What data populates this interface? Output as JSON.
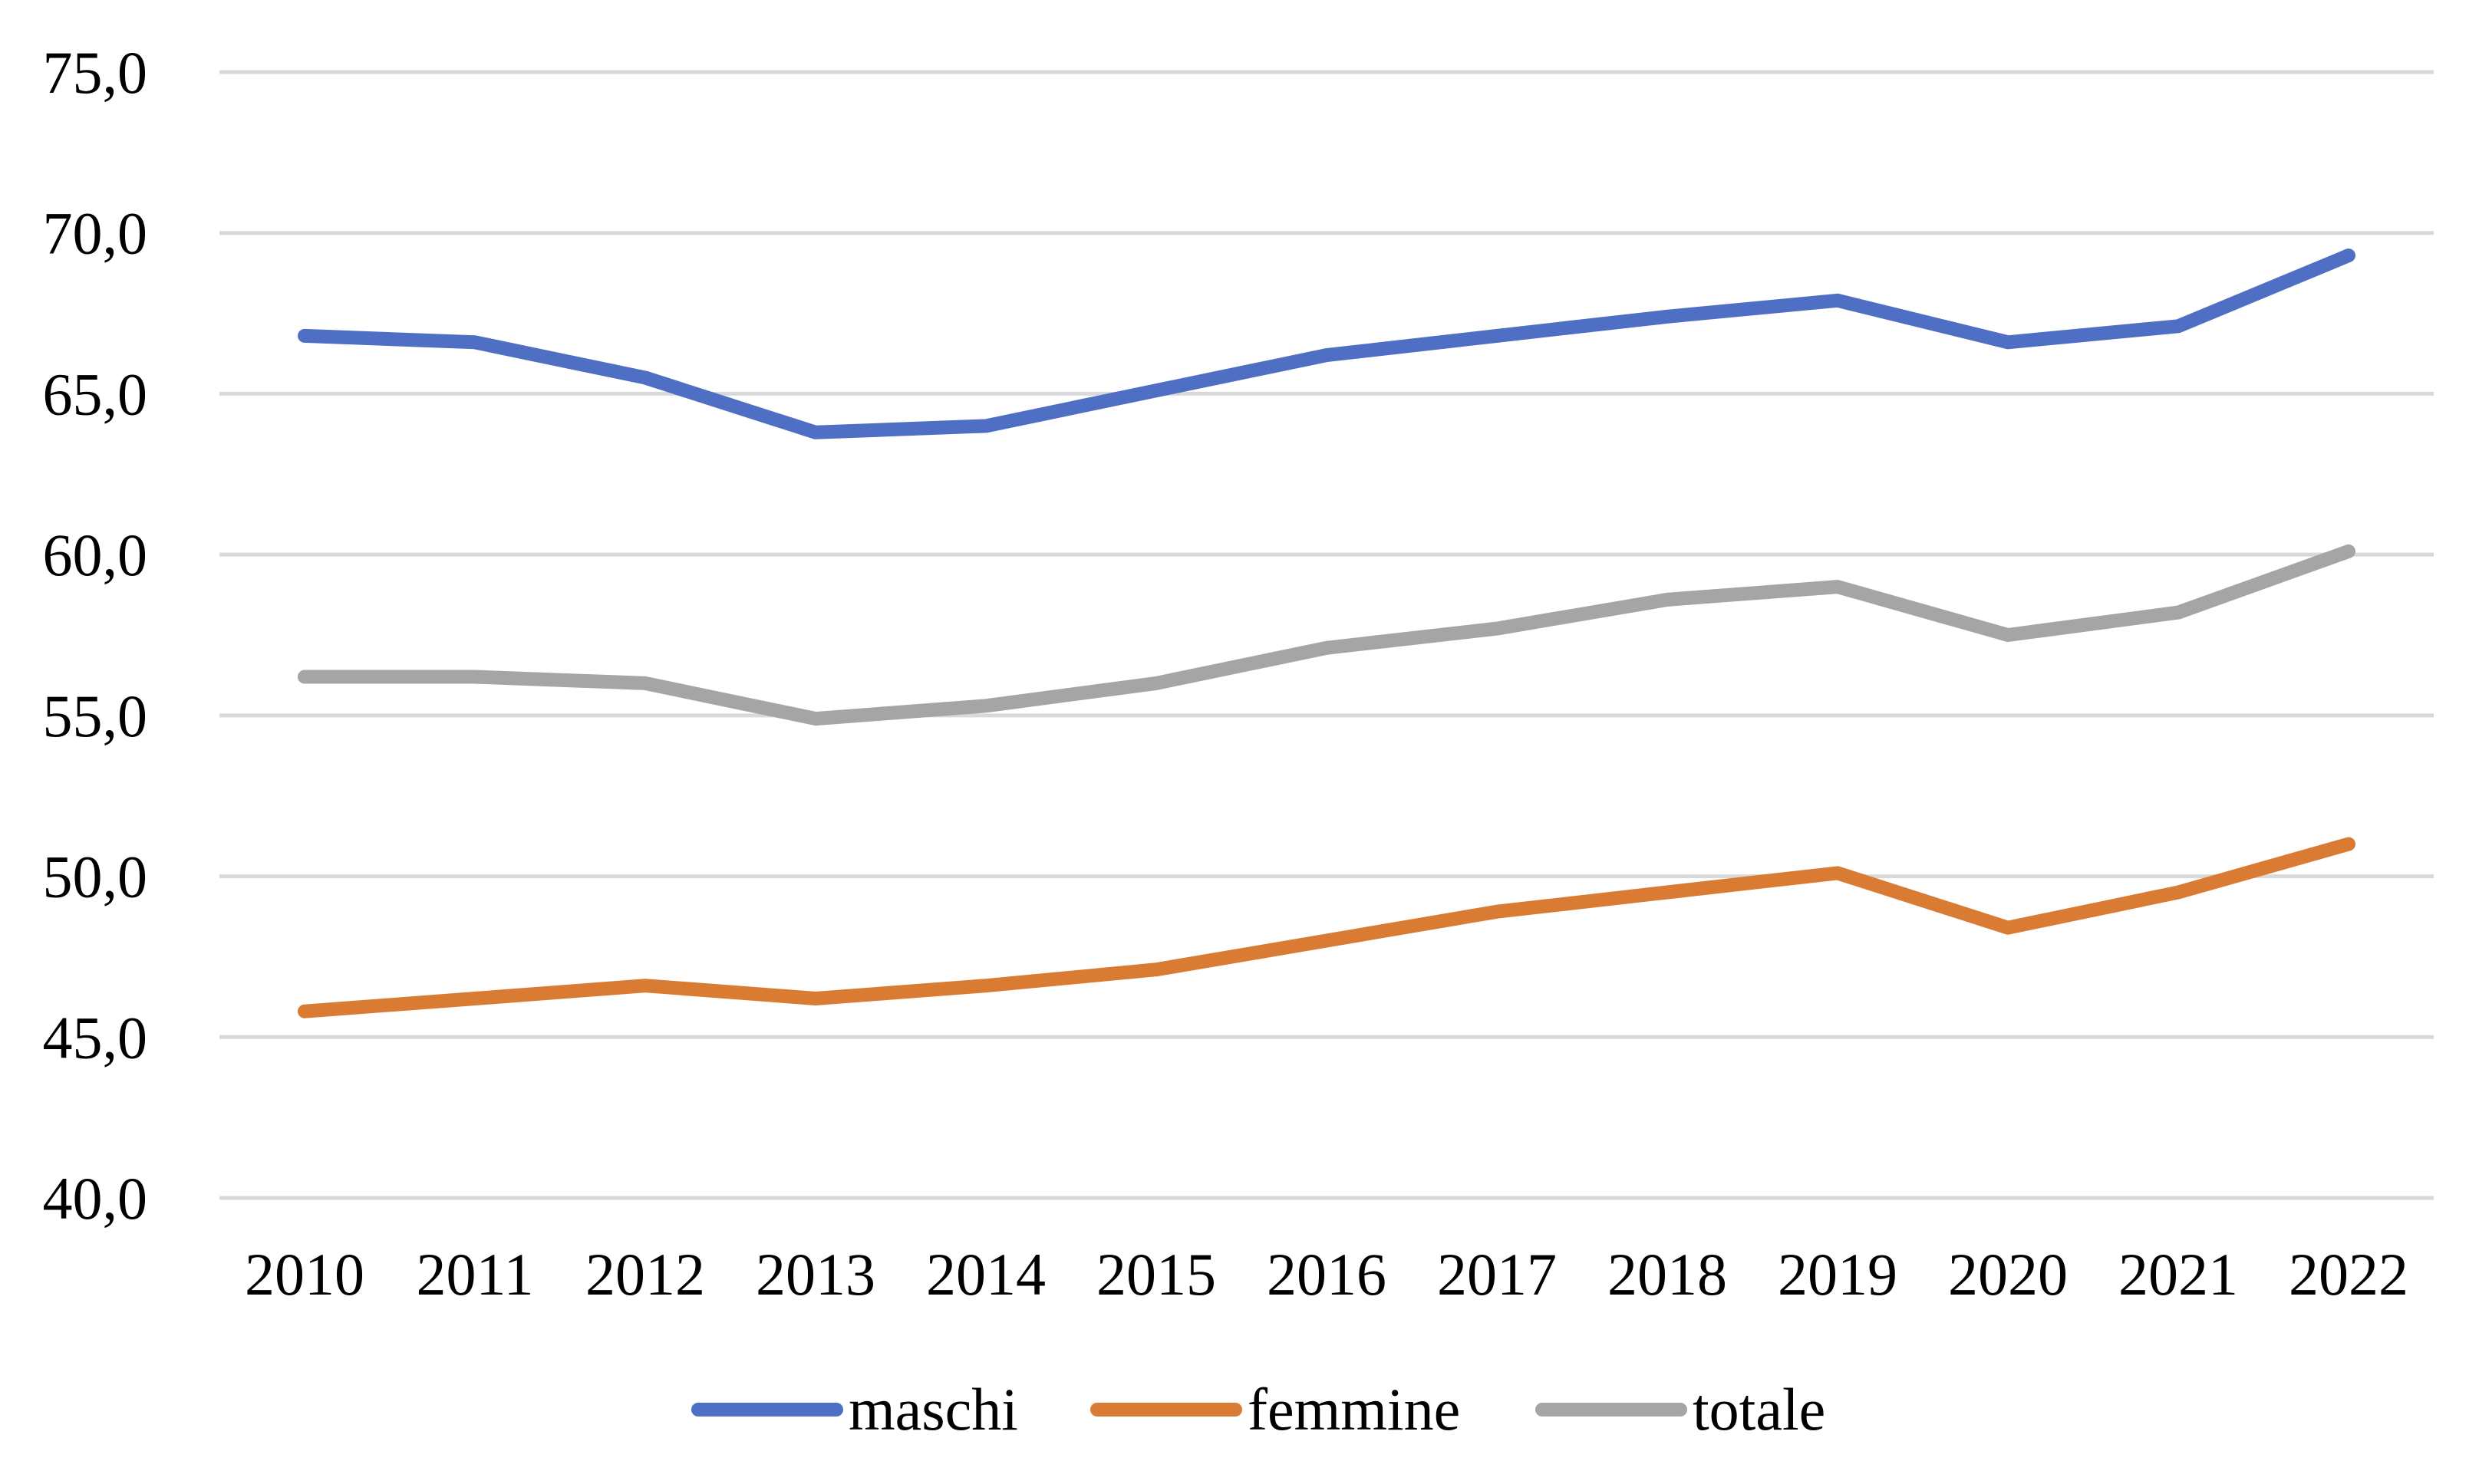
{
  "chart_data": {
    "type": "line",
    "title": "",
    "xlabel": "",
    "ylabel": "",
    "categories": [
      "2010",
      "2011",
      "2012",
      "2013",
      "2014",
      "2015",
      "2016",
      "2017",
      "2018",
      "2019",
      "2020",
      "2021",
      "2022"
    ],
    "ylim": [
      40,
      75
    ],
    "y_ticks": [
      40,
      45,
      50,
      55,
      60,
      65,
      70,
      75
    ],
    "y_tick_labels": [
      "40,0",
      "45,0",
      "50,0",
      "55,0",
      "60,0",
      "65,0",
      "70,0",
      "75,0"
    ],
    "grid": true,
    "legend_position": "bottom",
    "series": [
      {
        "name": "maschi",
        "color": "#4F6FC5",
        "values": [
          66.8,
          66.6,
          65.5,
          63.8,
          64.0,
          65.1,
          66.2,
          66.8,
          67.4,
          67.9,
          66.6,
          67.1,
          69.3
        ]
      },
      {
        "name": "femmine",
        "color": "#D97B33",
        "values": [
          45.8,
          46.2,
          46.6,
          46.2,
          46.6,
          47.1,
          48.0,
          48.9,
          49.5,
          50.1,
          48.4,
          49.5,
          51.0
        ]
      },
      {
        "name": "totale",
        "color": "#A5A5A5",
        "values": [
          56.2,
          56.2,
          56.0,
          54.9,
          55.3,
          56.0,
          57.1,
          57.7,
          58.6,
          59.0,
          57.5,
          58.2,
          60.1
        ]
      }
    ]
  },
  "colors": {
    "grid": "#D9D9D9",
    "text": "#000000"
  }
}
